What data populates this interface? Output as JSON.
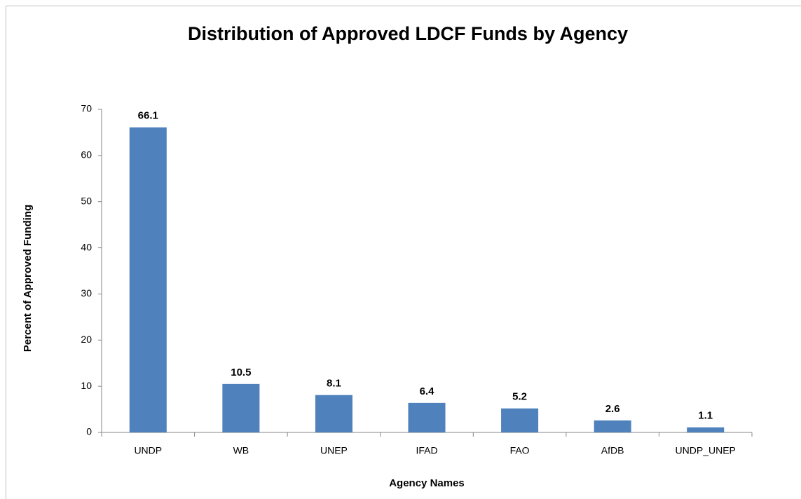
{
  "chart_data": {
    "type": "bar",
    "title": "Distribution of Approved LDCF Funds by Agency",
    "x_label": "Agency Names",
    "y_label": "Percent of Approved Funding",
    "categories": [
      "UNDP",
      "WB",
      "UNEP",
      "IFAD",
      "FAO",
      "AfDB",
      "UNDP_UNEP"
    ],
    "values": [
      66.1,
      10.5,
      8.1,
      6.4,
      5.2,
      2.6,
      1.1
    ],
    "color": "#4f81bd",
    "ylim": [
      0,
      70
    ],
    "yticks": [
      0,
      10,
      20,
      30,
      40,
      50,
      60,
      70
    ],
    "grid": false
  }
}
